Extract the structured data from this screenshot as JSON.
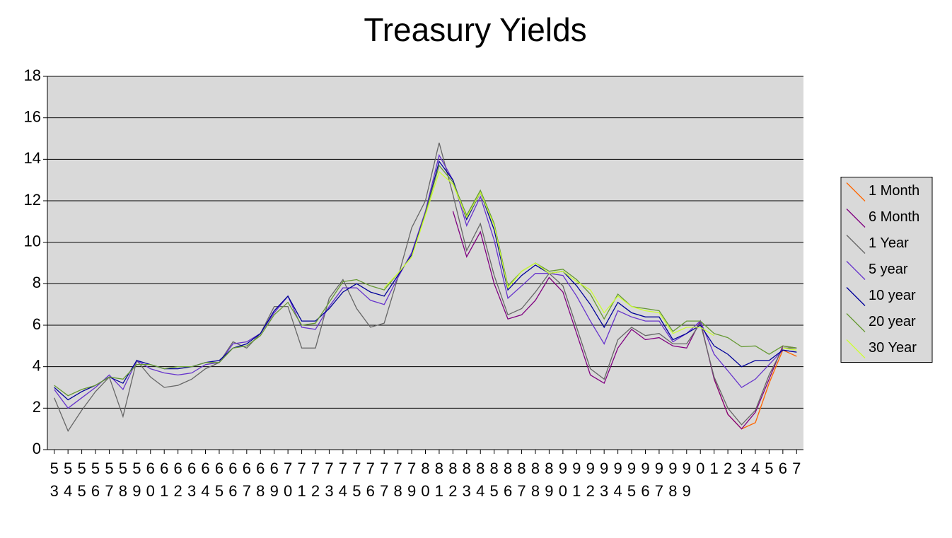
{
  "chart_data": {
    "type": "line",
    "title": "Treasury Yields",
    "categories": [
      "53",
      "54",
      "55",
      "56",
      "57",
      "58",
      "59",
      "60",
      "61",
      "62",
      "63",
      "64",
      "65",
      "66",
      "67",
      "68",
      "69",
      "70",
      "71",
      "72",
      "73",
      "74",
      "75",
      "76",
      "77",
      "78",
      "79",
      "80",
      "81",
      "82",
      "83",
      "84",
      "85",
      "86",
      "87",
      "88",
      "89",
      "90",
      "91",
      "92",
      "93",
      "94",
      "95",
      "96",
      "97",
      "98",
      "99",
      "0",
      "1",
      "2",
      "3",
      "4",
      "5",
      "6",
      "7"
    ],
    "series": [
      {
        "name": "1 Month",
        "color": "#ff6600",
        "values": [
          null,
          null,
          null,
          null,
          null,
          null,
          null,
          null,
          null,
          null,
          null,
          null,
          null,
          null,
          null,
          null,
          null,
          null,
          null,
          null,
          null,
          null,
          null,
          null,
          null,
          null,
          null,
          null,
          null,
          null,
          null,
          null,
          null,
          null,
          null,
          null,
          null,
          null,
          null,
          null,
          null,
          null,
          null,
          null,
          null,
          null,
          null,
          null,
          3.4,
          1.7,
          1.0,
          1.3,
          3.2,
          4.8,
          4.5
        ]
      },
      {
        "name": "6 Month",
        "color": "#800080",
        "values": [
          null,
          null,
          null,
          null,
          null,
          null,
          null,
          null,
          null,
          null,
          null,
          null,
          null,
          null,
          null,
          null,
          null,
          null,
          null,
          null,
          null,
          null,
          null,
          null,
          null,
          null,
          null,
          null,
          null,
          11.5,
          9.3,
          10.5,
          8.0,
          6.3,
          6.5,
          7.2,
          8.3,
          7.6,
          5.6,
          3.6,
          3.2,
          4.9,
          5.8,
          5.3,
          5.4,
          5.0,
          4.9,
          6.2,
          3.4,
          1.7,
          1.0,
          1.8,
          3.4,
          5.0,
          4.9
        ]
      },
      {
        "name": "1 Year",
        "color": "#666666",
        "values": [
          2.5,
          0.9,
          1.9,
          2.8,
          3.5,
          1.6,
          4.3,
          3.5,
          3.0,
          3.1,
          3.4,
          3.9,
          4.2,
          5.2,
          4.9,
          5.6,
          6.9,
          6.9,
          4.9,
          4.9,
          7.3,
          8.2,
          6.8,
          5.9,
          6.1,
          8.3,
          10.7,
          12.0,
          14.8,
          12.3,
          9.6,
          10.9,
          8.4,
          6.5,
          6.8,
          7.6,
          8.5,
          7.9,
          5.9,
          3.9,
          3.4,
          5.3,
          5.9,
          5.5,
          5.6,
          5.1,
          5.1,
          6.1,
          3.5,
          2.0,
          1.2,
          1.9,
          3.6,
          4.9,
          4.9
        ]
      },
      {
        "name": "5 year",
        "color": "#6633cc",
        "values": [
          2.9,
          2.0,
          2.5,
          3.0,
          3.6,
          2.9,
          4.3,
          3.9,
          3.7,
          3.6,
          3.7,
          4.1,
          4.2,
          5.1,
          5.2,
          5.6,
          6.6,
          7.4,
          5.9,
          5.8,
          6.9,
          7.8,
          7.8,
          7.2,
          7.0,
          8.3,
          9.5,
          11.5,
          14.2,
          13.0,
          10.8,
          12.2,
          10.1,
          7.3,
          7.9,
          8.5,
          8.5,
          8.4,
          7.4,
          6.2,
          5.1,
          6.7,
          6.4,
          6.2,
          6.2,
          5.2,
          5.6,
          6.2,
          4.6,
          3.8,
          3.0,
          3.4,
          4.1,
          4.8,
          4.7
        ]
      },
      {
        "name": "10 year",
        "color": "#000099",
        "values": [
          3.0,
          2.4,
          2.8,
          3.1,
          3.5,
          3.2,
          4.3,
          4.1,
          3.9,
          3.9,
          4.0,
          4.2,
          4.3,
          4.9,
          5.1,
          5.6,
          6.7,
          7.4,
          6.2,
          6.2,
          6.8,
          7.6,
          8.0,
          7.6,
          7.4,
          8.4,
          9.4,
          11.4,
          13.9,
          13.0,
          11.1,
          12.4,
          10.6,
          7.7,
          8.4,
          8.9,
          8.5,
          8.6,
          7.9,
          7.0,
          5.9,
          7.1,
          6.6,
          6.4,
          6.4,
          5.3,
          5.6,
          6.0,
          5.0,
          4.6,
          4.0,
          4.3,
          4.3,
          4.8,
          4.7
        ]
      },
      {
        "name": "20 year",
        "color": "#669933",
        "values": [
          3.1,
          2.6,
          2.9,
          3.1,
          3.5,
          3.4,
          4.1,
          4.1,
          3.9,
          4.0,
          4.0,
          4.2,
          4.2,
          4.9,
          5.0,
          5.5,
          6.5,
          7.1,
          6.0,
          6.1,
          7.1,
          8.1,
          8.2,
          7.9,
          7.7,
          8.5,
          9.3,
          11.4,
          13.7,
          12.9,
          11.3,
          12.5,
          10.9,
          7.9,
          8.6,
          9.0,
          8.6,
          8.7,
          8.2,
          7.5,
          6.3,
          7.5,
          6.9,
          6.8,
          6.7,
          5.7,
          6.2,
          6.2,
          5.6,
          5.4,
          4.96,
          5.0,
          4.6,
          5.0,
          4.9
        ]
      },
      {
        "name": "30 Year",
        "color": "#ccff33",
        "values": [
          null,
          null,
          null,
          null,
          null,
          null,
          null,
          null,
          null,
          null,
          null,
          null,
          null,
          null,
          null,
          null,
          null,
          null,
          null,
          null,
          null,
          null,
          null,
          null,
          7.8,
          8.5,
          9.3,
          11.3,
          13.4,
          12.8,
          11.2,
          12.4,
          10.8,
          7.8,
          8.6,
          9.0,
          8.5,
          8.6,
          8.1,
          7.7,
          6.6,
          7.4,
          6.9,
          6.7,
          6.6,
          5.6,
          5.9,
          5.9,
          5.5,
          null,
          null,
          null,
          null,
          4.9,
          4.8
        ]
      }
    ],
    "ylim": [
      0,
      18
    ],
    "yticks": [
      0,
      2,
      4,
      6,
      8,
      10,
      12,
      14,
      16,
      18
    ],
    "grid": true,
    "legend": "right"
  }
}
